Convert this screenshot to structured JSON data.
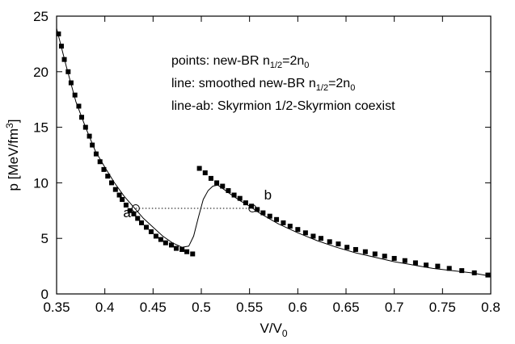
{
  "chart_data": {
    "type": "scatter",
    "title": "",
    "xlabel": {
      "main": "V/V",
      "sub": "0"
    },
    "ylabel": {
      "main": "p  [MeV/fm",
      "sup": "3",
      "end": "]"
    },
    "xlim": [
      0.35,
      0.8
    ],
    "ylim": [
      0,
      25
    ],
    "xticks": [
      "0.35",
      "0.4",
      "0.45",
      "0.5",
      "0.55",
      "0.6",
      "0.65",
      "0.7",
      "0.75",
      "0.8"
    ],
    "xtick_values": [
      0.35,
      0.4,
      0.45,
      0.5,
      0.55,
      0.6,
      0.65,
      0.7,
      0.75,
      0.8
    ],
    "yticks": [
      "0",
      "5",
      "10",
      "15",
      "20",
      "25"
    ],
    "ytick_values": [
      0,
      5,
      10,
      15,
      20,
      25
    ],
    "grid": false,
    "legend": {
      "placement": "top-right",
      "lines": [
        {
          "pre": "points: new-BR n",
          "sub": "1/2",
          "mid": "=2n",
          "sub2": "0"
        },
        {
          "pre": "line: smoothed new-BR n",
          "sub": "1/2",
          "mid": "=2n",
          "sub2": "0"
        },
        {
          "pre": "line-ab: Skyrmion 1/2-Skyrmion coexist",
          "sub": "",
          "mid": "",
          "sub2": ""
        }
      ]
    },
    "annotations": [
      {
        "text": "a",
        "x": 0.427,
        "y": 6.9
      },
      {
        "text": "b",
        "x": 0.565,
        "y": 8.5
      }
    ],
    "open_points": [
      {
        "x": 0.432,
        "y": 7.7
      },
      {
        "x": 0.553,
        "y": 7.7
      }
    ],
    "dotted_line": {
      "x": [
        0.432,
        0.553
      ],
      "y": [
        7.7,
        7.7
      ]
    },
    "series": [
      {
        "name": "points: new-BR n1/2=2n0",
        "marker": "square",
        "x": [
          0.352,
          0.355,
          0.358,
          0.362,
          0.365,
          0.369,
          0.373,
          0.376,
          0.38,
          0.384,
          0.387,
          0.391,
          0.395,
          0.399,
          0.403,
          0.407,
          0.411,
          0.415,
          0.418,
          0.422,
          0.426,
          0.43,
          0.434,
          0.438,
          0.443,
          0.448,
          0.453,
          0.458,
          0.463,
          0.469,
          0.474,
          0.48,
          0.485,
          0.491,
          0.498,
          0.504,
          0.51,
          0.516,
          0.522,
          0.528,
          0.534,
          0.54,
          0.546,
          0.552,
          0.558,
          0.564,
          0.571,
          0.578,
          0.585,
          0.592,
          0.6,
          0.608,
          0.616,
          0.624,
          0.633,
          0.642,
          0.651,
          0.66,
          0.67,
          0.68,
          0.69,
          0.7,
          0.711,
          0.722,
          0.733,
          0.745,
          0.757,
          0.77,
          0.783,
          0.797
        ],
        "y": [
          23.4,
          22.3,
          21.1,
          20.0,
          19.0,
          17.9,
          16.9,
          15.9,
          15.0,
          14.2,
          13.4,
          12.6,
          11.9,
          11.2,
          10.6,
          10.0,
          9.4,
          8.9,
          8.5,
          8.0,
          7.5,
          7.2,
          6.8,
          6.4,
          6.0,
          5.6,
          5.2,
          4.9,
          4.6,
          4.4,
          4.1,
          4.0,
          3.8,
          3.6,
          11.3,
          10.9,
          10.4,
          10.0,
          9.7,
          9.3,
          8.9,
          8.6,
          8.2,
          7.9,
          7.6,
          7.3,
          7.0,
          6.7,
          6.4,
          6.1,
          5.8,
          5.5,
          5.2,
          5.0,
          4.7,
          4.5,
          4.2,
          4.0,
          3.8,
          3.6,
          3.4,
          3.2,
          3.0,
          2.8,
          2.6,
          2.5,
          2.3,
          2.1,
          1.9,
          1.7
        ]
      },
      {
        "name": "line: smoothed new-BR n1/2=2n0",
        "marker": "line",
        "x": [
          0.35,
          0.36,
          0.37,
          0.38,
          0.39,
          0.4,
          0.41,
          0.42,
          0.43,
          0.44,
          0.45,
          0.46,
          0.47,
          0.48,
          0.487,
          0.492,
          0.497,
          0.502,
          0.507,
          0.512,
          0.517,
          0.522,
          0.53,
          0.54,
          0.55,
          0.56,
          0.57,
          0.58,
          0.59,
          0.6,
          0.62,
          0.64,
          0.66,
          0.68,
          0.7,
          0.72,
          0.74,
          0.76,
          0.78,
          0.8
        ],
        "y": [
          23.9,
          20.5,
          17.3,
          15.0,
          12.9,
          11.4,
          10.0,
          8.8,
          7.8,
          6.8,
          6.0,
          5.2,
          4.6,
          4.2,
          4.3,
          5.2,
          6.9,
          8.5,
          9.3,
          9.7,
          9.8,
          9.5,
          9.0,
          8.4,
          7.9,
          7.3,
          6.8,
          6.3,
          5.9,
          5.5,
          4.8,
          4.2,
          3.7,
          3.3,
          2.9,
          2.6,
          2.3,
          2.1,
          1.9,
          1.6
        ]
      }
    ]
  }
}
